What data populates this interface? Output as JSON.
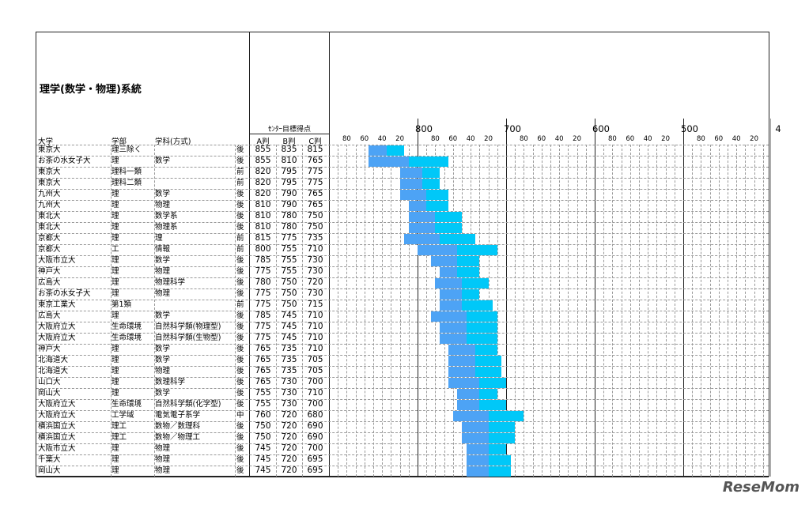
{
  "title": "理学(数学・物理)系統",
  "score_group_label": "ｾﾝﾀｰ目標得点",
  "headers": {
    "university": "大学",
    "faculty": "学部",
    "department": "学科(方式)",
    "A": "A判",
    "B": "B判",
    "C": "C判"
  },
  "colors": {
    "a_to_b": "#4da3f5",
    "b_to_c": "#00c8f8"
  },
  "watermark": "ReseMom",
  "rows": [
    [
      "東京大",
      "理三除く",
      "",
      "後",
      855,
      835,
      815
    ],
    [
      "お茶の水女子大",
      "理",
      "数学",
      "後",
      855,
      810,
      765
    ],
    [
      "東京大",
      "理科一類",
      "",
      "前",
      820,
      795,
      775
    ],
    [
      "東京大",
      "理科二類",
      "",
      "前",
      820,
      795,
      775
    ],
    [
      "九州大",
      "理",
      "数学",
      "後",
      820,
      790,
      765
    ],
    [
      "九州大",
      "理",
      "物理",
      "後",
      810,
      790,
      765
    ],
    [
      "東北大",
      "理",
      "数学系",
      "後",
      810,
      780,
      750
    ],
    [
      "東北大",
      "理",
      "物理系",
      "後",
      810,
      780,
      750
    ],
    [
      "京都大",
      "理",
      "理",
      "前",
      815,
      775,
      735
    ],
    [
      "京都大",
      "工",
      "情報",
      "前",
      800,
      755,
      710
    ],
    [
      "大阪市立大",
      "理",
      "数学",
      "後",
      785,
      755,
      730
    ],
    [
      "神戸大",
      "理",
      "物理",
      "後",
      775,
      755,
      730
    ],
    [
      "広島大",
      "理",
      "物理科学",
      "後",
      780,
      750,
      720
    ],
    [
      "お茶の水女子大",
      "理",
      "物理",
      "後",
      775,
      750,
      730
    ],
    [
      "東京工業大",
      "第1類",
      "",
      "前",
      775,
      750,
      715
    ],
    [
      "広島大",
      "理",
      "数学",
      "後",
      785,
      745,
      710
    ],
    [
      "大阪府立大",
      "生命環境",
      "自然科学類(物理型)",
      "後",
      775,
      745,
      710
    ],
    [
      "大阪府立大",
      "生命環境",
      "自然科学類(生物型)",
      "後",
      775,
      745,
      710
    ],
    [
      "神戸大",
      "理",
      "数学",
      "後",
      765,
      735,
      710
    ],
    [
      "北海道大",
      "理",
      "数学",
      "後",
      765,
      735,
      705
    ],
    [
      "北海道大",
      "理",
      "物理",
      "後",
      765,
      735,
      705
    ],
    [
      "山口大",
      "理",
      "数理科学",
      "後",
      765,
      730,
      700
    ],
    [
      "岡山大",
      "理",
      "数学",
      "後",
      755,
      730,
      710
    ],
    [
      "大阪府立大",
      "生命環境",
      "自然科学類(化学型)",
      "後",
      755,
      730,
      700
    ],
    [
      "大阪府立大",
      "工学域",
      "電気電子系学",
      "中",
      760,
      720,
      680
    ],
    [
      "横浜国立大",
      "理工",
      "数物／数理科",
      "後",
      750,
      720,
      690
    ],
    [
      "横浜国立大",
      "理工",
      "数物／物理工",
      "後",
      750,
      720,
      690
    ],
    [
      "大阪市立大",
      "理",
      "物理",
      "後",
      745,
      720,
      700
    ],
    [
      "千葉大",
      "理",
      "物理",
      "後",
      745,
      720,
      695
    ],
    [
      "岡山大",
      "理",
      "物理",
      "後",
      745,
      720,
      695
    ]
  ],
  "chart_data": {
    "type": "bar",
    "orientation": "horizontal-range",
    "x_reversed": true,
    "xlim": [
      898,
      402
    ],
    "major_ticks": [
      "800",
      "700",
      "600",
      "500",
      "4"
    ],
    "minor_tick_labels": [
      "80",
      "60",
      "40",
      "20"
    ],
    "grid": true,
    "note_series": [
      "A判→B判 range",
      "B判→C判 range"
    ]
  }
}
